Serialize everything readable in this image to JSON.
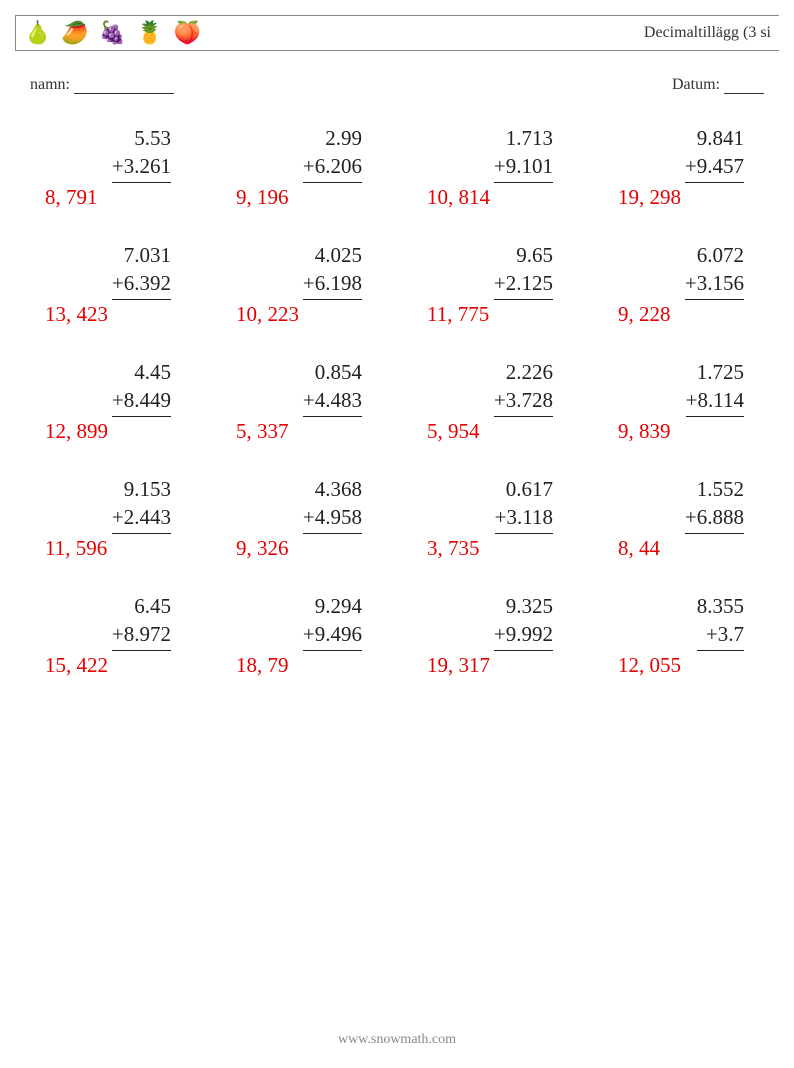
{
  "header": {
    "fruits": [
      "🍐",
      "🥭",
      "🍇",
      "🍍",
      "🍑"
    ],
    "title": "Decimaltillägg (3 si"
  },
  "labels": {
    "name": "namn:",
    "date": "Datum:"
  },
  "footer": "www.snowmath.com",
  "colors": {
    "answer": "#e60000",
    "text": "#222222",
    "border": "#888888"
  },
  "problems": [
    {
      "a": "5.53",
      "b": "+3.261",
      "ans": "8, 791"
    },
    {
      "a": "2.99",
      "b": "+6.206",
      "ans": "9, 196"
    },
    {
      "a": "1.713",
      "b": "+9.101",
      "ans": "10, 814"
    },
    {
      "a": "9.841",
      "b": "+9.457",
      "ans": "19, 298"
    },
    {
      "a": "7.031",
      "b": "+6.392",
      "ans": "13, 423"
    },
    {
      "a": "4.025",
      "b": "+6.198",
      "ans": "10, 223"
    },
    {
      "a": "9.65",
      "b": "+2.125",
      "ans": "11, 775"
    },
    {
      "a": "6.072",
      "b": "+3.156",
      "ans": "9, 228"
    },
    {
      "a": "4.45",
      "b": "+8.449",
      "ans": "12, 899"
    },
    {
      "a": "0.854",
      "b": "+4.483",
      "ans": "5, 337"
    },
    {
      "a": "2.226",
      "b": "+3.728",
      "ans": "5, 954"
    },
    {
      "a": "1.725",
      "b": "+8.114",
      "ans": "9, 839"
    },
    {
      "a": "9.153",
      "b": "+2.443",
      "ans": "11, 596"
    },
    {
      "a": "4.368",
      "b": "+4.958",
      "ans": "9, 326"
    },
    {
      "a": "0.617",
      "b": "+3.118",
      "ans": "3, 735"
    },
    {
      "a": "1.552",
      "b": "+6.888",
      "ans": "8, 44"
    },
    {
      "a": "6.45",
      "b": "+8.972",
      "ans": "15, 422"
    },
    {
      "a": "9.294",
      "b": "+9.496",
      "ans": "18, 79"
    },
    {
      "a": "9.325",
      "b": "+9.992",
      "ans": "19, 317"
    },
    {
      "a": "8.355",
      "b": "+3.7",
      "ans": "12, 055"
    }
  ]
}
